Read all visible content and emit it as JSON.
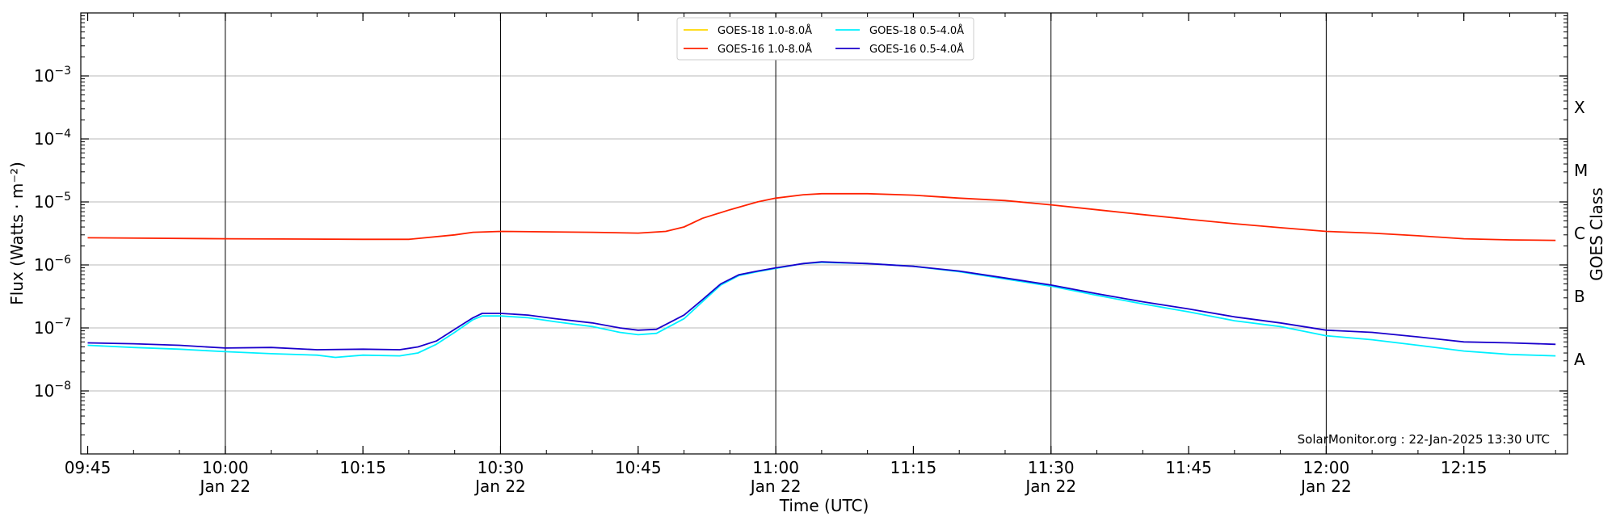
{
  "chart_data": {
    "type": "line",
    "xlabel": "Time (UTC)",
    "ylabel": "Flux (Watts · m⁻²)",
    "right_label": "GOES Class",
    "credit": "SolarMonitor.org : 22-Jan-2025 13:30 UTC",
    "y_scale": "log",
    "ylim": [
      "1e-9",
      "1e-2"
    ],
    "xlim": [
      "09:45",
      "12:25"
    ],
    "x_tick_labels": [
      {
        "t": "09:45",
        "line1": "09:45",
        "line2": ""
      },
      {
        "t": "10:00",
        "line1": "10:00",
        "line2": "Jan 22"
      },
      {
        "t": "10:15",
        "line1": "10:15",
        "line2": ""
      },
      {
        "t": "10:30",
        "line1": "10:30",
        "line2": "Jan 22"
      },
      {
        "t": "10:45",
        "line1": "10:45",
        "line2": ""
      },
      {
        "t": "11:00",
        "line1": "11:00",
        "line2": "Jan 22"
      },
      {
        "t": "11:15",
        "line1": "11:15",
        "line2": ""
      },
      {
        "t": "11:30",
        "line1": "11:30",
        "line2": "Jan 22"
      },
      {
        "t": "11:45",
        "line1": "11:45",
        "line2": ""
      },
      {
        "t": "12:00",
        "line1": "12:00",
        "line2": "Jan 22"
      },
      {
        "t": "12:15",
        "line1": "12:15",
        "line2": ""
      }
    ],
    "vertical_lines": [
      "10:00",
      "10:30",
      "11:00",
      "11:30",
      "12:00"
    ],
    "y_ticks": [
      {
        "exp": -8,
        "label": "10",
        "sup": "−8"
      },
      {
        "exp": -7,
        "label": "10",
        "sup": "−7"
      },
      {
        "exp": -6,
        "label": "10",
        "sup": "−6"
      },
      {
        "exp": -5,
        "label": "10",
        "sup": "−5"
      },
      {
        "exp": -4,
        "label": "10",
        "sup": "−4"
      },
      {
        "exp": -3,
        "label": "10",
        "sup": "−3"
      }
    ],
    "goes_classes": [
      {
        "label": "A",
        "exp": -7.5
      },
      {
        "label": "B",
        "exp": -6.5
      },
      {
        "label": "C",
        "exp": -5.5
      },
      {
        "label": "M",
        "exp": -4.5
      },
      {
        "label": "X",
        "exp": -3.5
      }
    ],
    "grid": true,
    "legend_position": "top-center",
    "legend": [
      {
        "name": "GOES-18 1.0-8.0Å",
        "color": "#ffd700"
      },
      {
        "name": "GOES-16 1.0-8.0Å",
        "color": "#ff2200"
      },
      {
        "name": "GOES-18 0.5-4.0Å",
        "color": "#00f0ff"
      },
      {
        "name": "GOES-16 0.5-4.0Å",
        "color": "#1a00cc"
      }
    ],
    "series": [
      {
        "name": "GOES-16 1.0-8.0Å",
        "color": "#ff2200",
        "points": [
          [
            "09:45",
            "2.7e-6"
          ],
          [
            "10:00",
            "2.6e-6"
          ],
          [
            "10:15",
            "2.55e-6"
          ],
          [
            "10:20",
            "2.55e-6"
          ],
          [
            "10:25",
            "3.0e-6"
          ],
          [
            "10:27",
            "3.3e-6"
          ],
          [
            "10:30",
            "3.4e-6"
          ],
          [
            "10:40",
            "3.3e-6"
          ],
          [
            "10:45",
            "3.2e-6"
          ],
          [
            "10:48",
            "3.4e-6"
          ],
          [
            "10:50",
            "4.0e-6"
          ],
          [
            "10:52",
            "5.5e-6"
          ],
          [
            "10:55",
            "7.5e-6"
          ],
          [
            "10:58",
            "1.0e-5"
          ],
          [
            "11:00",
            "1.15e-5"
          ],
          [
            "11:03",
            "1.3e-5"
          ],
          [
            "11:05",
            "1.35e-5"
          ],
          [
            "11:10",
            "1.35e-5"
          ],
          [
            "11:15",
            "1.28e-5"
          ],
          [
            "11:20",
            "1.15e-5"
          ],
          [
            "11:25",
            "1.05e-5"
          ],
          [
            "11:30",
            "9.0e-6"
          ],
          [
            "11:35",
            "7.5e-6"
          ],
          [
            "11:40",
            "6.3e-6"
          ],
          [
            "11:45",
            "5.3e-6"
          ],
          [
            "11:50",
            "4.5e-6"
          ],
          [
            "11:55",
            "3.9e-6"
          ],
          [
            "12:00",
            "3.4e-6"
          ],
          [
            "12:05",
            "3.2e-6"
          ],
          [
            "12:10",
            "2.9e-6"
          ],
          [
            "12:15",
            "2.6e-6"
          ],
          [
            "12:20",
            "2.5e-6"
          ],
          [
            "12:25",
            "2.45e-6"
          ]
        ]
      },
      {
        "name": "GOES-18 0.5-4.0Å",
        "color": "#00f0ff",
        "points": [
          [
            "09:45",
            "5.3e-8"
          ],
          [
            "09:50",
            "4.9e-8"
          ],
          [
            "09:55",
            "4.6e-8"
          ],
          [
            "10:00",
            "4.2e-8"
          ],
          [
            "10:05",
            "3.9e-8"
          ],
          [
            "10:10",
            "3.7e-8"
          ],
          [
            "10:12",
            "3.4e-8"
          ],
          [
            "10:15",
            "3.7e-8"
          ],
          [
            "10:19",
            "3.6e-8"
          ],
          [
            "10:21",
            "4.0e-8"
          ],
          [
            "10:23",
            "5.5e-8"
          ],
          [
            "10:25",
            "8.5e-8"
          ],
          [
            "10:27",
            "1.35e-7"
          ],
          [
            "10:28",
            "1.55e-7"
          ],
          [
            "10:30",
            "1.55e-7"
          ],
          [
            "10:33",
            "1.45e-7"
          ],
          [
            "10:36",
            "1.25e-7"
          ],
          [
            "10:40",
            "1.05e-7"
          ],
          [
            "10:43",
            "8.5e-8"
          ],
          [
            "10:45",
            "7.8e-8"
          ],
          [
            "10:47",
            "8.2e-8"
          ],
          [
            "10:50",
            "1.4e-7"
          ],
          [
            "10:52",
            "2.6e-7"
          ],
          [
            "10:54",
            "4.8e-7"
          ],
          [
            "10:56",
            "6.8e-7"
          ],
          [
            "10:58",
            "7.8e-7"
          ],
          [
            "11:00",
            "8.8e-7"
          ],
          [
            "11:03",
            "1.05e-6"
          ],
          [
            "11:05",
            "1.1e-6"
          ],
          [
            "11:10",
            "1.05e-6"
          ],
          [
            "11:15",
            "9.5e-7"
          ],
          [
            "11:20",
            "7.8e-7"
          ],
          [
            "11:25",
            "6.0e-7"
          ],
          [
            "11:30",
            "4.6e-7"
          ],
          [
            "11:35",
            "3.3e-7"
          ],
          [
            "11:40",
            "2.4e-7"
          ],
          [
            "11:45",
            "1.8e-7"
          ],
          [
            "11:50",
            "1.3e-7"
          ],
          [
            "11:55",
            "1.05e-7"
          ],
          [
            "12:00",
            "7.5e-8"
          ],
          [
            "12:05",
            "6.5e-8"
          ],
          [
            "12:10",
            "5.3e-8"
          ],
          [
            "12:15",
            "4.3e-8"
          ],
          [
            "12:20",
            "3.8e-8"
          ],
          [
            "12:25",
            "3.6e-8"
          ]
        ]
      },
      {
        "name": "GOES-16 0.5-4.0Å",
        "color": "#1a00cc",
        "points": [
          [
            "09:45",
            "5.8e-8"
          ],
          [
            "09:50",
            "5.6e-8"
          ],
          [
            "09:55",
            "5.3e-8"
          ],
          [
            "10:00",
            "4.8e-8"
          ],
          [
            "10:05",
            "4.9e-8"
          ],
          [
            "10:10",
            "4.5e-8"
          ],
          [
            "10:15",
            "4.6e-8"
          ],
          [
            "10:19",
            "4.5e-8"
          ],
          [
            "10:21",
            "5.0e-8"
          ],
          [
            "10:23",
            "6.2e-8"
          ],
          [
            "10:25",
            "9.5e-8"
          ],
          [
            "10:27",
            "1.45e-7"
          ],
          [
            "10:28",
            "1.7e-7"
          ],
          [
            "10:30",
            "1.7e-7"
          ],
          [
            "10:33",
            "1.6e-7"
          ],
          [
            "10:36",
            "1.4e-7"
          ],
          [
            "10:40",
            "1.2e-7"
          ],
          [
            "10:43",
            "1.0e-7"
          ],
          [
            "10:45",
            "9.2e-8"
          ],
          [
            "10:47",
            "9.5e-8"
          ],
          [
            "10:50",
            "1.6e-7"
          ],
          [
            "10:52",
            "2.8e-7"
          ],
          [
            "10:54",
            "5.0e-7"
          ],
          [
            "10:56",
            "7.0e-7"
          ],
          [
            "10:58",
            "8.0e-7"
          ],
          [
            "11:00",
            "9.0e-7"
          ],
          [
            "11:03",
            "1.05e-6"
          ],
          [
            "11:05",
            "1.12e-6"
          ],
          [
            "11:10",
            "1.05e-6"
          ],
          [
            "11:15",
            "9.5e-7"
          ],
          [
            "11:20",
            "8.0e-7"
          ],
          [
            "11:25",
            "6.2e-7"
          ],
          [
            "11:30",
            "4.8e-7"
          ],
          [
            "11:35",
            "3.5e-7"
          ],
          [
            "11:40",
            "2.6e-7"
          ],
          [
            "11:45",
            "2.0e-7"
          ],
          [
            "11:50",
            "1.5e-7"
          ],
          [
            "11:55",
            "1.2e-7"
          ],
          [
            "12:00",
            "9.2e-8"
          ],
          [
            "12:05",
            "8.5e-8"
          ],
          [
            "12:10",
            "7.2e-8"
          ],
          [
            "12:15",
            "6.0e-8"
          ],
          [
            "12:20",
            "5.8e-8"
          ],
          [
            "12:25",
            "5.5e-8"
          ]
        ]
      }
    ]
  }
}
